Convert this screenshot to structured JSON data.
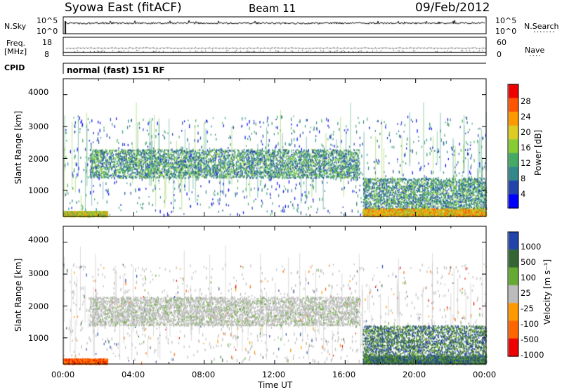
{
  "header": {
    "radar_title": "Syowa East (fitACF)",
    "beam": "Beam 11",
    "date": "09/Feb/2012"
  },
  "info_panels": {
    "nsky_label": "N.Sky",
    "nsky_ticks": [
      "10^5",
      "10^0"
    ],
    "nsearch_label": "N.Search",
    "nsearch_ticks": [
      "10^5",
      "10^0"
    ],
    "freq_label": "Freq.",
    "freq_unit": "[MHz]",
    "freq_ticks": [
      "18",
      "8"
    ],
    "nave_label": "Nave",
    "nave_ticks": [
      "60",
      "0"
    ],
    "cpid_label": "CPID",
    "cpid_text": "normal (fast) 151 RF"
  },
  "colors": {
    "power": [
      "#0000ff",
      "#2244aa",
      "#33888a",
      "#44aa66",
      "#88cc33",
      "#ddcc22",
      "#ff9900",
      "#ff5500",
      "#ee0000"
    ],
    "velocity": [
      "#2244aa",
      "#336633",
      "#66aa33",
      "#bbbbbb",
      "#ff9900",
      "#ff6600",
      "#ee0000"
    ]
  },
  "chart_data": [
    {
      "type": "heatmap",
      "panel": "power",
      "ylabel": "Slant Range [km]",
      "y_ticks": [
        "1000",
        "2000",
        "3000",
        "4000"
      ],
      "ylim": [
        180,
        4500
      ],
      "xlim": [
        0,
        24
      ],
      "colorbar_label": "Power [dB]",
      "colorbar_ticks": [
        "4",
        "8",
        "12",
        "16",
        "20",
        "24",
        "28"
      ],
      "features": [
        {
          "region": "F-region band",
          "x_range": [
            1.5,
            16.8
          ],
          "y_range": [
            1400,
            2300
          ],
          "approx_value_dB": 16
        },
        {
          "region": "near range",
          "x_range": [
            0,
            2.5
          ],
          "y_range": [
            200,
            350
          ],
          "approx_value_dB": 22
        },
        {
          "region": "evening near range",
          "x_range": [
            17,
            24
          ],
          "y_range": [
            200,
            450
          ],
          "approx_value_dB": 26
        },
        {
          "region": "evening E/F",
          "x_range": [
            17,
            24
          ],
          "y_range": [
            450,
            1400
          ],
          "approx_value_dB": 14
        }
      ]
    },
    {
      "type": "heatmap",
      "panel": "velocity",
      "ylabel": "Slant Range [km]",
      "y_ticks": [
        "1000",
        "2000",
        "3000",
        "4000"
      ],
      "ylim": [
        180,
        4500
      ],
      "xlim": [
        0,
        24
      ],
      "xlabel": "Time UT",
      "x_ticks": [
        "00:00",
        "04:00",
        "08:00",
        "12:00",
        "16:00",
        "20:00",
        "00:00"
      ],
      "colorbar_label": "Velocity [m s⁻¹]",
      "colorbar_ticks": [
        "1000",
        "500",
        "100",
        "25",
        "-25",
        "-100",
        "-500",
        "-1000"
      ],
      "features": [
        {
          "region": "F-region band",
          "x_range": [
            1.5,
            16.8
          ],
          "y_range": [
            1400,
            2300
          ],
          "approx_value_ms": 0
        },
        {
          "region": "near range",
          "x_range": [
            0,
            2.5
          ],
          "y_range": [
            200,
            350
          ],
          "approx_value_ms": -300
        },
        {
          "region": "evening near range",
          "x_range": [
            17,
            24
          ],
          "y_range": [
            200,
            450
          ],
          "approx_value_ms": 300
        },
        {
          "region": "evening E/F",
          "x_range": [
            17,
            24
          ],
          "y_range": [
            450,
            1400
          ],
          "approx_value_ms": 200
        }
      ]
    }
  ]
}
